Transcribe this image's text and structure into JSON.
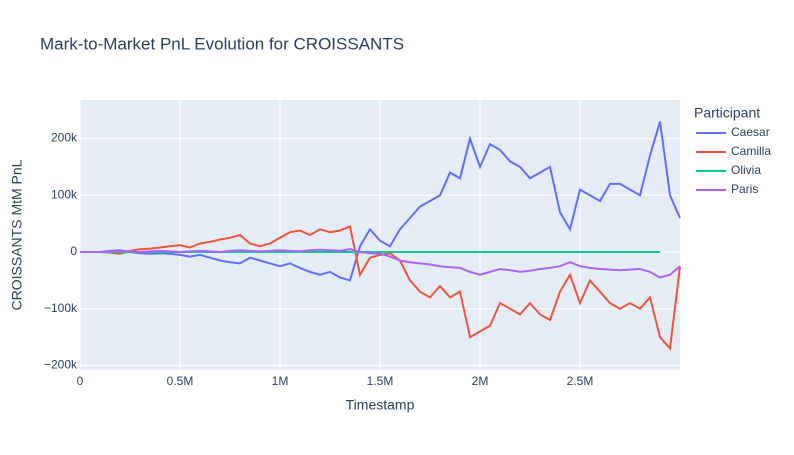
{
  "chart_data": {
    "type": "line",
    "title": "Mark-to-Market PnL Evolution for CROISSANTS",
    "x_label": "Timestamp",
    "y_label": "CROISSANTS MtM PnL",
    "legend_title": "Participant",
    "x": [
      0,
      50000,
      100000,
      150000,
      200000,
      250000,
      300000,
      350000,
      400000,
      450000,
      500000,
      550000,
      600000,
      650000,
      700000,
      750000,
      800000,
      850000,
      900000,
      950000,
      1000000,
      1050000,
      1100000,
      1150000,
      1200000,
      1250000,
      1300000,
      1350000,
      1400000,
      1450000,
      1500000,
      1550000,
      1600000,
      1650000,
      1700000,
      1750000,
      1800000,
      1850000,
      1900000,
      1950000,
      2000000,
      2050000,
      2100000,
      2150000,
      2200000,
      2250000,
      2300000,
      2350000,
      2400000,
      2450000,
      2500000,
      2550000,
      2600000,
      2650000,
      2700000,
      2750000,
      2800000,
      2850000,
      2900000,
      2950000,
      3000000
    ],
    "series": [
      {
        "name": "Caesar",
        "color": "#636efa",
        "values": [
          0,
          0,
          0,
          2000,
          3000,
          0,
          -2000,
          -3000,
          -2000,
          -3000,
          -5000,
          -8000,
          -5000,
          -10000,
          -15000,
          -18000,
          -20000,
          -10000,
          -15000,
          -20000,
          -25000,
          -20000,
          -28000,
          -35000,
          -40000,
          -35000,
          -45000,
          -50000,
          10000,
          40000,
          20000,
          10000,
          40000,
          60000,
          80000,
          90000,
          100000,
          140000,
          130000,
          200000,
          150000,
          190000,
          180000,
          160000,
          150000,
          130000,
          140000,
          150000,
          70000,
          40000,
          110000,
          100000,
          90000,
          120000,
          120000,
          110000,
          100000,
          170000,
          230000,
          100000,
          60000
        ]
      },
      {
        "name": "Camilla",
        "color": "#EF553B",
        "values": [
          0,
          0,
          0,
          -1000,
          -3000,
          2000,
          5000,
          6000,
          8000,
          10000,
          12000,
          8000,
          15000,
          18000,
          22000,
          25000,
          30000,
          15000,
          10000,
          15000,
          25000,
          35000,
          38000,
          30000,
          40000,
          35000,
          38000,
          45000,
          -40000,
          -10000,
          -5000,
          -2000,
          -15000,
          -50000,
          -70000,
          -80000,
          -60000,
          -80000,
          -70000,
          -150000,
          -140000,
          -130000,
          -90000,
          -100000,
          -110000,
          -90000,
          -110000,
          -120000,
          -70000,
          -40000,
          -90000,
          -50000,
          -70000,
          -90000,
          -100000,
          -90000,
          -100000,
          -80000,
          -150000,
          -170000,
          -25000
        ]
      },
      {
        "name": "Olivia",
        "color": "#00cc96",
        "values": [
          0,
          0,
          0,
          0,
          0,
          0,
          0,
          0,
          0,
          0,
          0,
          0,
          0,
          0,
          0,
          0,
          0,
          0,
          0,
          0,
          0,
          0,
          0,
          0,
          0,
          0,
          0,
          0,
          0,
          0,
          0,
          0,
          0,
          0,
          0,
          0,
          0,
          0,
          0,
          0,
          0,
          0,
          0,
          0,
          0,
          0,
          0,
          0,
          0,
          0,
          0,
          0,
          0,
          0,
          0,
          0,
          0,
          0,
          0,
          null,
          null
        ]
      },
      {
        "name": "Paris",
        "color": "#ab63fa",
        "values": [
          0,
          0,
          0,
          1000,
          2000,
          1000,
          0,
          1000,
          2000,
          1000,
          0,
          1000,
          2000,
          1000,
          0,
          2000,
          3000,
          2000,
          1000,
          2000,
          3000,
          2000,
          1000,
          3000,
          4000,
          3000,
          2000,
          5000,
          0,
          -2000,
          -3000,
          -8000,
          -15000,
          -18000,
          -20000,
          -22000,
          -25000,
          -27000,
          -28000,
          -35000,
          -40000,
          -35000,
          -30000,
          -32000,
          -35000,
          -33000,
          -30000,
          -28000,
          -25000,
          -18000,
          -25000,
          -28000,
          -30000,
          -31000,
          -32000,
          -31000,
          -30000,
          -35000,
          -45000,
          -40000,
          -25000
        ]
      }
    ],
    "xlim": [
      0,
      3000000
    ],
    "xticks": [
      0,
      {
        "value": 500000,
        "label": "0.5M"
      },
      {
        "value": 1000000,
        "label": "1M"
      },
      {
        "value": 1500000,
        "label": "1.5M"
      },
      {
        "value": 2000000,
        "label": "2M"
      },
      {
        "value": 2500000,
        "label": "2.5M"
      }
    ],
    "ylim": [
      -208000,
      268000
    ],
    "yticks": [
      {
        "value": -200000,
        "label": "−200k"
      },
      {
        "value": -100000,
        "label": "−100k"
      },
      0,
      {
        "value": 100000,
        "label": "100k"
      },
      {
        "value": 200000,
        "label": "200k"
      }
    ],
    "grid": true
  }
}
